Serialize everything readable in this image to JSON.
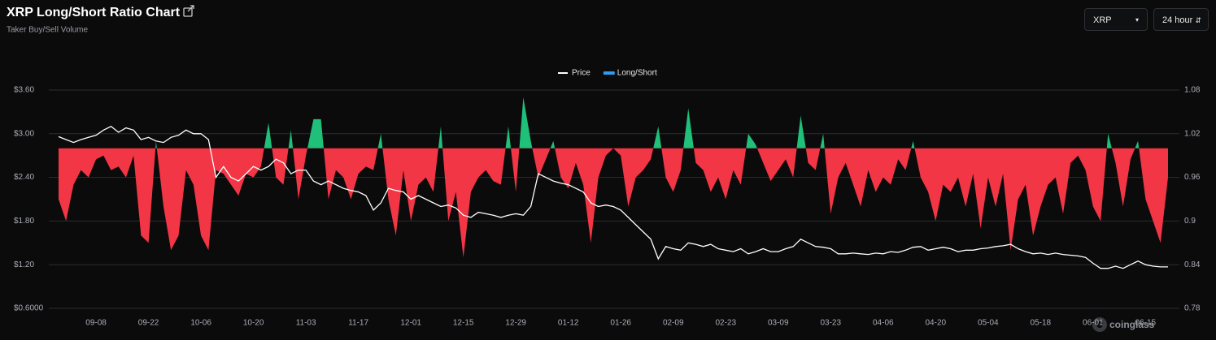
{
  "header": {
    "title": "XRP Long/Short Ratio Chart",
    "subtitle": "Taker Buy/Sell Volume"
  },
  "controls": {
    "symbol": "XRP",
    "interval": "24 hour"
  },
  "watermark": "coinglass",
  "chart_data": {
    "type": "combo",
    "categories": [
      null,
      null,
      null,
      null,
      null,
      "09-08",
      null,
      null,
      null,
      null,
      null,
      null,
      "09-22",
      null,
      null,
      null,
      null,
      null,
      null,
      "10-06",
      null,
      null,
      null,
      null,
      null,
      null,
      "10-20",
      null,
      null,
      null,
      null,
      null,
      null,
      "11-03",
      null,
      null,
      null,
      null,
      null,
      null,
      "11-17",
      null,
      null,
      null,
      null,
      null,
      null,
      "12-01",
      null,
      null,
      null,
      null,
      null,
      null,
      "12-15",
      null,
      null,
      null,
      null,
      null,
      null,
      "12-29",
      null,
      null,
      null,
      null,
      null,
      null,
      "01-12",
      null,
      null,
      null,
      null,
      null,
      null,
      "01-26",
      null,
      null,
      null,
      null,
      null,
      null,
      "02-09",
      null,
      null,
      null,
      null,
      null,
      null,
      "02-23",
      null,
      null,
      null,
      null,
      null,
      null,
      "03-09",
      null,
      null,
      null,
      null,
      null,
      null,
      "03-23",
      null,
      null,
      null,
      null,
      null,
      null,
      "04-06",
      null,
      null,
      null,
      null,
      null,
      null,
      "04-20",
      null,
      null,
      null,
      null,
      null,
      null,
      "05-04",
      null,
      null,
      null,
      null,
      null,
      null,
      "05-18",
      null,
      null,
      null,
      null,
      null,
      null,
      "06-01",
      null,
      null,
      null,
      null,
      null,
      null,
      "06-15",
      null,
      null,
      null
    ],
    "series": [
      {
        "name": "Price",
        "type": "line",
        "color": "#ffffff",
        "values": [
          2.96,
          2.92,
          2.88,
          2.92,
          2.95,
          2.98,
          3.05,
          3.1,
          3.02,
          3.08,
          3.05,
          2.92,
          2.95,
          2.9,
          2.88,
          2.95,
          2.98,
          3.05,
          3.0,
          3.0,
          2.92,
          2.4,
          2.55,
          2.4,
          2.35,
          2.45,
          2.55,
          2.5,
          2.55,
          2.65,
          2.6,
          2.45,
          2.5,
          2.5,
          2.35,
          2.3,
          2.35,
          2.3,
          2.25,
          2.22,
          2.2,
          2.15,
          1.95,
          2.05,
          2.25,
          2.22,
          2.2,
          2.1,
          2.15,
          2.1,
          2.05,
          2.0,
          2.02,
          1.98,
          1.88,
          1.85,
          1.92,
          1.9,
          1.88,
          1.85,
          1.88,
          1.9,
          1.88,
          2.0,
          2.45,
          2.4,
          2.35,
          2.32,
          2.3,
          2.25,
          2.2,
          2.05,
          2.0,
          2.02,
          2.0,
          1.95,
          1.85,
          1.75,
          1.65,
          1.55,
          1.28,
          1.45,
          1.42,
          1.4,
          1.5,
          1.48,
          1.45,
          1.48,
          1.42,
          1.4,
          1.38,
          1.42,
          1.35,
          1.38,
          1.42,
          1.38,
          1.38,
          1.42,
          1.45,
          1.55,
          1.5,
          1.45,
          1.44,
          1.42,
          1.35,
          1.35,
          1.36,
          1.35,
          1.34,
          1.36,
          1.35,
          1.38,
          1.37,
          1.4,
          1.44,
          1.45,
          1.4,
          1.42,
          1.44,
          1.42,
          1.38,
          1.4,
          1.4,
          1.42,
          1.43,
          1.45,
          1.46,
          1.48,
          1.42,
          1.38,
          1.35,
          1.36,
          1.34,
          1.36,
          1.34,
          1.33,
          1.32,
          1.3,
          1.22,
          1.15,
          1.15,
          1.18,
          1.15,
          1.2,
          1.25,
          1.2,
          1.18,
          1.17,
          1.17
        ]
      },
      {
        "name": "Long/Short",
        "type": "area",
        "axis": "y2",
        "color": "#f23645",
        "positive_color": "#1fc07a",
        "baseline": 1,
        "values": [
          0.93,
          0.9,
          0.95,
          0.97,
          0.96,
          0.985,
          0.99,
          0.97,
          0.975,
          0.96,
          0.99,
          0.88,
          0.87,
          1.01,
          0.92,
          0.86,
          0.88,
          0.97,
          0.95,
          0.88,
          0.86,
          0.97,
          0.965,
          0.95,
          0.935,
          0.965,
          0.96,
          0.975,
          1.035,
          0.96,
          0.95,
          1.025,
          0.93,
          0.99,
          1.04,
          1.04,
          0.93,
          0.97,
          0.96,
          0.93,
          0.965,
          0.975,
          0.97,
          1.02,
          0.93,
          0.88,
          0.97,
          0.9,
          0.95,
          0.96,
          0.94,
          1.03,
          0.9,
          0.94,
          0.85,
          0.94,
          0.96,
          0.97,
          0.955,
          0.95,
          1.03,
          0.94,
          1.07,
          1.01,
          0.96,
          0.985,
          1.01,
          0.96,
          0.945,
          0.98,
          0.95,
          0.87,
          0.96,
          0.99,
          1.0,
          0.99,
          0.92,
          0.96,
          0.97,
          0.985,
          1.03,
          0.96,
          0.94,
          0.97,
          1.055,
          0.98,
          0.97,
          0.94,
          0.96,
          0.93,
          0.97,
          0.95,
          1.02,
          1.005,
          0.98,
          0.955,
          0.97,
          0.985,
          0.96,
          1.045,
          0.98,
          0.97,
          1.02,
          0.91,
          0.96,
          0.98,
          0.95,
          0.92,
          0.97,
          0.94,
          0.96,
          0.95,
          0.985,
          0.97,
          1.01,
          0.96,
          0.94,
          0.9,
          0.95,
          0.94,
          0.96,
          0.92,
          0.965,
          0.89,
          0.96,
          0.92,
          0.965,
          0.86,
          0.93,
          0.95,
          0.88,
          0.92,
          0.95,
          0.96,
          0.91,
          0.98,
          0.99,
          0.97,
          0.92,
          0.9,
          1.02,
          0.98,
          0.92,
          0.985,
          1.01,
          0.93,
          0.9,
          0.87,
          0.96
        ]
      }
    ],
    "ylim": [
      0.6,
      3.6
    ],
    "yticks": [
      {
        "value": 0.6,
        "label": "$0.6000"
      },
      {
        "value": 1.2,
        "label": "$1.20"
      },
      {
        "value": 1.8,
        "label": "$1.80"
      },
      {
        "value": 2.4,
        "label": "$2.40"
      },
      {
        "value": 3.0,
        "label": "$3.00"
      },
      {
        "value": 3.6,
        "label": "$3.60"
      }
    ],
    "y2lim": [
      0.78,
      1.08
    ],
    "y2ticks": [
      0.78,
      0.84,
      0.9,
      0.96,
      1.02,
      1.08
    ],
    "grid": true
  }
}
